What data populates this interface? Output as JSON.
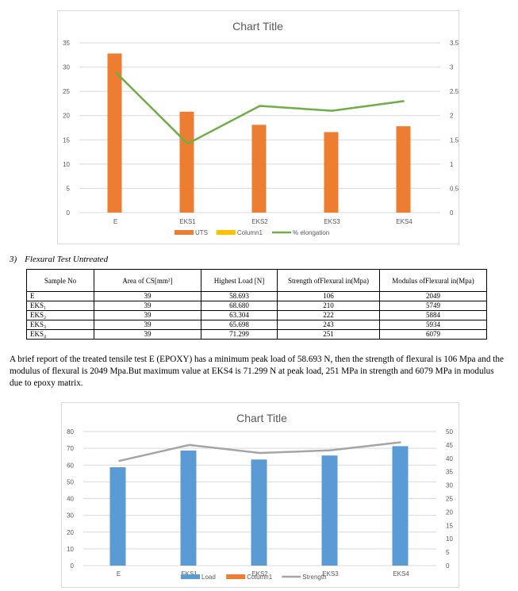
{
  "chart1": {
    "chart_data": {
      "type": "bar",
      "title": "Chart Title",
      "categories": [
        "E",
        "EKS1",
        "EKS2",
        "EKS3",
        "EKS4"
      ],
      "series": [
        {
          "name": "UTS",
          "kind": "bar",
          "axis": "left",
          "color": "#ED7D31",
          "values": [
            32.8,
            20.8,
            18.1,
            16.6,
            17.8
          ]
        },
        {
          "name": "Column1",
          "kind": "bar",
          "axis": "left",
          "color": "#FFC000",
          "values": [
            0,
            0,
            0,
            0,
            0
          ]
        },
        {
          "name": "% elongation",
          "kind": "line",
          "axis": "right",
          "color": "#70AD47",
          "values": [
            2.9,
            1.42,
            2.2,
            2.1,
            2.3
          ]
        }
      ],
      "y_left": {
        "min": 0,
        "max": 35,
        "step": 5,
        "ticks": [
          "0",
          "5",
          "10",
          "15",
          "20",
          "25",
          "30",
          "35"
        ]
      },
      "y_right": {
        "min": 0,
        "max": 3.5,
        "step": 0.5,
        "ticks": [
          "0",
          "0.5",
          "1",
          "1.5",
          "2",
          "2.5",
          "3",
          "3.5"
        ]
      },
      "grid": true,
      "legend": "bottom"
    }
  },
  "section": {
    "number": "3)",
    "title": "Flexural Test Untreated"
  },
  "table": {
    "headers": [
      "Sample No",
      "Area of CS[mm²]",
      "Highest Load [N]",
      "Strength ofFlexural in(Mpa)",
      "Modulus ofFlexural in(Mpa)"
    ],
    "rows": [
      [
        "E",
        "39",
        "58.693",
        "106",
        "2049"
      ],
      [
        "EKS₁",
        "39",
        "68.680",
        "210",
        "5749"
      ],
      [
        "EKS₂",
        "39",
        "63.304",
        "222",
        "5884"
      ],
      [
        "EKS₃",
        "39",
        "65.698",
        "243",
        "5934"
      ],
      [
        "EKS₄",
        "39",
        "71.299",
        "251",
        "6079"
      ]
    ]
  },
  "paragraph": "A brief report of the treated tensile test E (EPOXY) has a minimum peak load of 58.693 N, then the strength of flexural is 106 Mpa and the modulus of flexural is 2049 Mpa.But maximum value at EKS4 is 71.299 N at peak load, 251 MPa in strength and 6079 MPa in modulus due to epoxy matrix.",
  "chart2": {
    "chart_data": {
      "type": "bar",
      "title": "Chart Title",
      "categories": [
        "E",
        "EKS1",
        "EKS2",
        "EKS3",
        "EKS4"
      ],
      "series": [
        {
          "name": "Load",
          "kind": "bar",
          "axis": "left",
          "color": "#5B9BD5",
          "values": [
            58.693,
            68.68,
            63.304,
            65.698,
            71.299
          ]
        },
        {
          "name": "Column1",
          "kind": "bar",
          "axis": "left",
          "color": "#ED7D31",
          "values": [
            0,
            0,
            0,
            0,
            0
          ]
        },
        {
          "name": "Strength",
          "kind": "line",
          "axis": "right",
          "color": "#A5A5A5",
          "values": [
            39,
            45,
            42,
            43,
            46
          ]
        }
      ],
      "y_left": {
        "min": 0,
        "max": 80,
        "step": 10,
        "ticks": [
          "0",
          "10",
          "20",
          "30",
          "40",
          "50",
          "60",
          "70",
          "80"
        ]
      },
      "y_right": {
        "min": 0,
        "max": 50,
        "step": 5,
        "ticks": [
          "0",
          "5",
          "10",
          "15",
          "20",
          "25",
          "30",
          "35",
          "40",
          "45",
          "50"
        ]
      },
      "grid": true,
      "legend": "bottom"
    }
  }
}
